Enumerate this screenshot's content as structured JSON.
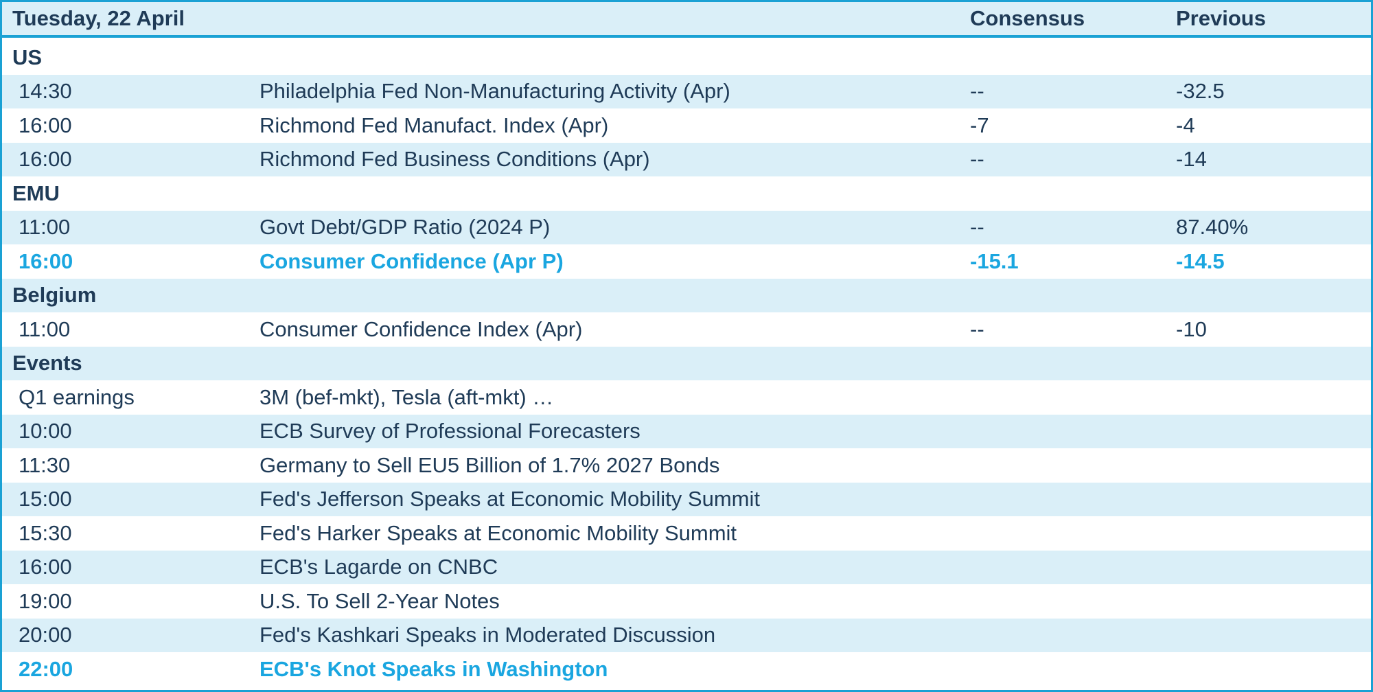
{
  "header": {
    "date": "Tuesday, 22 April",
    "consensus": "Consensus",
    "previous": "Previous"
  },
  "sections": {
    "us": "US",
    "emu": "EMU",
    "belgium": "Belgium",
    "events": "Events"
  },
  "us": [
    {
      "time": "14:30",
      "label": "Philadelphia Fed Non-Manufacturing Activity (Apr)",
      "consensus": "--",
      "previous": "-32.5"
    },
    {
      "time": "16:00",
      "label": "Richmond Fed Manufact. Index (Apr)",
      "consensus": "-7",
      "previous": "-4"
    },
    {
      "time": "16:00",
      "label": "Richmond Fed Business Conditions (Apr)",
      "consensus": "--",
      "previous": "-14"
    }
  ],
  "emu": [
    {
      "time": "11:00",
      "label": "Govt Debt/GDP Ratio (2024 P)",
      "consensus": "--",
      "previous": "87.40%"
    },
    {
      "time": "16:00",
      "label": "Consumer Confidence (Apr P)",
      "consensus": "-15.1",
      "previous": "-14.5"
    }
  ],
  "belgium": [
    {
      "time": "11:00",
      "label": "Consumer Confidence Index (Apr)",
      "consensus": "--",
      "previous": "-10"
    }
  ],
  "events": [
    {
      "time": "Q1 earnings",
      "label": "3M (bef-mkt), Tesla (aft-mkt) …"
    },
    {
      "time": "10:00",
      "label": "ECB Survey of Professional Forecasters"
    },
    {
      "time": "11:30",
      "label": "Germany to Sell EU5 Billion of 1.7% 2027 Bonds"
    },
    {
      "time": "15:00",
      "label": "Fed's Jefferson Speaks at Economic Mobility Summit"
    },
    {
      "time": "15:30",
      "label": "Fed's Harker Speaks at Economic Mobility Summit"
    },
    {
      "time": "16:00",
      "label": "ECB's Lagarde on CNBC"
    },
    {
      "time": "19:00",
      "label": "U.S. To Sell 2-Year Notes"
    },
    {
      "time": "20:00",
      "label": "Fed's Kashkari Speaks in Moderated Discussion"
    },
    {
      "time": "22:00",
      "label": "ECB's Knot Speaks in Washington"
    }
  ],
  "colors": {
    "text": "#1f3b57",
    "highlight": "#1aa6e0",
    "band": "#daeff8",
    "border": "#1aa1d4"
  }
}
